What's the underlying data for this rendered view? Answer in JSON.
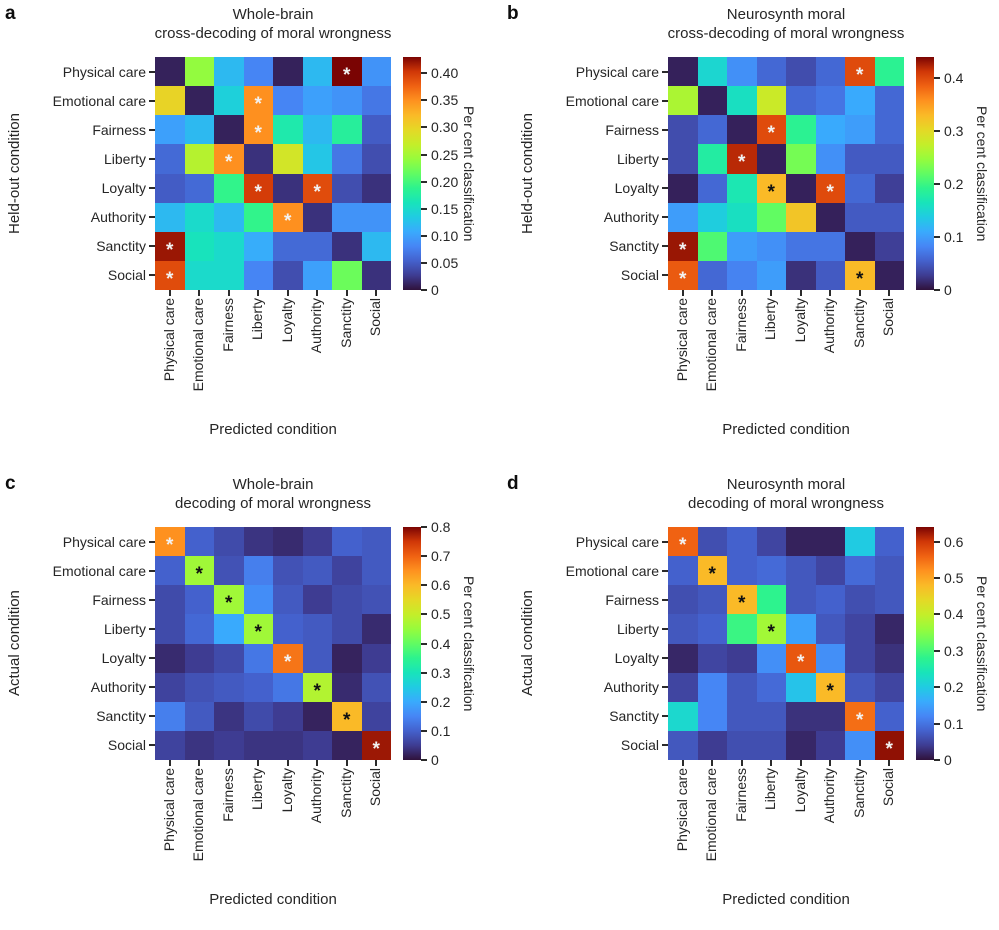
{
  "figure": {
    "background": "#ffffff",
    "text_color": "#262626",
    "colormap": "turbo",
    "categories": [
      "Physical care",
      "Emotional care",
      "Fairness",
      "Liberty",
      "Loyalty",
      "Authority",
      "Sanctity",
      "Social"
    ],
    "xlabel": "Predicted condition",
    "colorbar_label": "Per cent classification",
    "significance_marker": "*"
  },
  "chart_data": [
    {
      "type": "heatmap",
      "letter": "a",
      "title_line1": "Whole-brain",
      "title_line2": "cross-decoding of moral wrongness",
      "ylabel": "Held-out condition",
      "xlabel": "Predicted condition",
      "rows": [
        "Physical care",
        "Emotional care",
        "Fairness",
        "Liberty",
        "Loyalty",
        "Authority",
        "Sanctity",
        "Social"
      ],
      "cols": [
        "Physical care",
        "Emotional care",
        "Fairness",
        "Liberty",
        "Loyalty",
        "Authority",
        "Sanctity",
        "Social"
      ],
      "vmax": 0.43,
      "colorbar_ticks": [
        {
          "value": 0,
          "label": "0"
        },
        {
          "value": 0.05,
          "label": "0.05"
        },
        {
          "value": 0.1,
          "label": "0.10"
        },
        {
          "value": 0.15,
          "label": "0.15"
        },
        {
          "value": 0.2,
          "label": "0.20"
        },
        {
          "value": 0.25,
          "label": "0.25"
        },
        {
          "value": 0.3,
          "label": "0.30"
        },
        {
          "value": 0.35,
          "label": "0.35"
        },
        {
          "value": 0.4,
          "label": "0.40"
        }
      ],
      "values": [
        [
          0.01,
          0.24,
          0.12,
          0.08,
          0.01,
          0.12,
          0.43,
          0.09
        ],
        [
          0.3,
          0.01,
          0.14,
          0.35,
          0.08,
          0.1,
          0.09,
          0.07
        ],
        [
          0.1,
          0.12,
          0.01,
          0.35,
          0.17,
          0.12,
          0.18,
          0.05
        ],
        [
          0.06,
          0.26,
          0.35,
          0.02,
          0.28,
          0.13,
          0.07,
          0.04
        ],
        [
          0.05,
          0.06,
          0.19,
          0.4,
          0.02,
          0.39,
          0.04,
          0.02
        ],
        [
          0.12,
          0.15,
          0.12,
          0.19,
          0.35,
          0.02,
          0.09,
          0.09
        ],
        [
          0.42,
          0.16,
          0.15,
          0.11,
          0.06,
          0.06,
          0.02,
          0.12
        ],
        [
          0.39,
          0.15,
          0.15,
          0.08,
          0.04,
          0.1,
          0.22,
          0.02
        ]
      ],
      "significant": [
        {
          "row": 0,
          "col": 6,
          "star": "white"
        },
        {
          "row": 1,
          "col": 3,
          "star": "white"
        },
        {
          "row": 2,
          "col": 3,
          "star": "white"
        },
        {
          "row": 3,
          "col": 2,
          "star": "white"
        },
        {
          "row": 4,
          "col": 3,
          "star": "white"
        },
        {
          "row": 4,
          "col": 5,
          "star": "white"
        },
        {
          "row": 5,
          "col": 4,
          "star": "white"
        },
        {
          "row": 6,
          "col": 0,
          "star": "white"
        },
        {
          "row": 7,
          "col": 0,
          "star": "white"
        }
      ]
    },
    {
      "type": "heatmap",
      "letter": "b",
      "title_line1": "Neurosynth moral",
      "title_line2": "cross-decoding of moral wrongness",
      "ylabel": "Held-out condition",
      "xlabel": "Predicted condition",
      "rows": [
        "Physical care",
        "Emotional care",
        "Fairness",
        "Liberty",
        "Loyalty",
        "Authority",
        "Sanctity",
        "Social"
      ],
      "cols": [
        "Physical care",
        "Emotional care",
        "Fairness",
        "Liberty",
        "Loyalty",
        "Authority",
        "Sanctity",
        "Social"
      ],
      "vmax": 0.44,
      "colorbar_ticks": [
        {
          "value": 0,
          "label": "0"
        },
        {
          "value": 0.1,
          "label": "0.1"
        },
        {
          "value": 0.2,
          "label": "0.2"
        },
        {
          "value": 0.3,
          "label": "0.3"
        },
        {
          "value": 0.4,
          "label": "0.4"
        }
      ],
      "values": [
        [
          0.01,
          0.15,
          0.09,
          0.06,
          0.04,
          0.06,
          0.4,
          0.19
        ],
        [
          0.26,
          0.01,
          0.16,
          0.28,
          0.06,
          0.07,
          0.11,
          0.06
        ],
        [
          0.04,
          0.06,
          0.01,
          0.4,
          0.19,
          0.11,
          0.1,
          0.06
        ],
        [
          0.04,
          0.18,
          0.42,
          0.01,
          0.23,
          0.09,
          0.05,
          0.05
        ],
        [
          0.01,
          0.06,
          0.17,
          0.33,
          0.01,
          0.4,
          0.06,
          0.03
        ],
        [
          0.1,
          0.14,
          0.16,
          0.22,
          0.32,
          0.01,
          0.05,
          0.05
        ],
        [
          0.43,
          0.21,
          0.1,
          0.09,
          0.07,
          0.07,
          0.01,
          0.03
        ],
        [
          0.39,
          0.06,
          0.08,
          0.1,
          0.02,
          0.05,
          0.33,
          0.01
        ]
      ],
      "significant": [
        {
          "row": 0,
          "col": 6,
          "star": "white"
        },
        {
          "row": 2,
          "col": 3,
          "star": "white"
        },
        {
          "row": 3,
          "col": 2,
          "star": "white"
        },
        {
          "row": 4,
          "col": 3,
          "star": "black"
        },
        {
          "row": 4,
          "col": 5,
          "star": "white"
        },
        {
          "row": 6,
          "col": 0,
          "star": "white"
        },
        {
          "row": 7,
          "col": 0,
          "star": "white"
        },
        {
          "row": 7,
          "col": 6,
          "star": "black"
        }
      ]
    },
    {
      "type": "heatmap",
      "letter": "c",
      "title_line1": "Whole-brain",
      "title_line2": "decoding of moral wrongness",
      "ylabel": "Actual condition",
      "xlabel": "Predicted condition",
      "rows": [
        "Physical care",
        "Emotional care",
        "Fairness",
        "Liberty",
        "Loyalty",
        "Authority",
        "Sanctity",
        "Social"
      ],
      "cols": [
        "Physical care",
        "Emotional care",
        "Fairness",
        "Liberty",
        "Loyalty",
        "Authority",
        "Sanctity",
        "Social"
      ],
      "vmax": 0.8,
      "colorbar_ticks": [
        {
          "value": 0,
          "label": "0"
        },
        {
          "value": 0.1,
          "label": "0.1"
        },
        {
          "value": 0.2,
          "label": "0.2"
        },
        {
          "value": 0.3,
          "label": "0.3"
        },
        {
          "value": 0.4,
          "label": "0.4"
        },
        {
          "value": 0.5,
          "label": "0.5"
        },
        {
          "value": 0.6,
          "label": "0.6"
        },
        {
          "value": 0.7,
          "label": "0.7"
        },
        {
          "value": 0.8,
          "label": "0.8"
        }
      ],
      "values": [
        [
          0.65,
          0.1,
          0.07,
          0.04,
          0.03,
          0.05,
          0.1,
          0.09
        ],
        [
          0.1,
          0.46,
          0.08,
          0.14,
          0.08,
          0.09,
          0.06,
          0.09
        ],
        [
          0.07,
          0.1,
          0.46,
          0.16,
          0.09,
          0.05,
          0.07,
          0.08
        ],
        [
          0.07,
          0.11,
          0.2,
          0.46,
          0.1,
          0.09,
          0.07,
          0.03
        ],
        [
          0.03,
          0.05,
          0.07,
          0.13,
          0.68,
          0.09,
          0.02,
          0.05
        ],
        [
          0.06,
          0.08,
          0.09,
          0.1,
          0.13,
          0.48,
          0.03,
          0.08
        ],
        [
          0.14,
          0.09,
          0.04,
          0.07,
          0.05,
          0.02,
          0.6,
          0.06
        ],
        [
          0.06,
          0.04,
          0.05,
          0.04,
          0.04,
          0.05,
          0.02,
          0.78
        ]
      ],
      "significant": [
        {
          "row": 0,
          "col": 0,
          "star": "white"
        },
        {
          "row": 1,
          "col": 1,
          "star": "black"
        },
        {
          "row": 2,
          "col": 2,
          "star": "black"
        },
        {
          "row": 3,
          "col": 3,
          "star": "black"
        },
        {
          "row": 4,
          "col": 4,
          "star": "white"
        },
        {
          "row": 5,
          "col": 5,
          "star": "black"
        },
        {
          "row": 6,
          "col": 6,
          "star": "black"
        },
        {
          "row": 7,
          "col": 7,
          "star": "white"
        }
      ]
    },
    {
      "type": "heatmap",
      "letter": "d",
      "title_line1": "Neurosynth moral",
      "title_line2": "decoding of moral wrongness",
      "ylabel": "Actual condition",
      "xlabel": "Predicted condition",
      "rows": [
        "Physical care",
        "Emotional care",
        "Fairness",
        "Liberty",
        "Loyalty",
        "Authority",
        "Sanctity",
        "Social"
      ],
      "cols": [
        "Physical care",
        "Emotional care",
        "Fairness",
        "Liberty",
        "Loyalty",
        "Authority",
        "Sanctity",
        "Social"
      ],
      "vmax": 0.64,
      "colorbar_ticks": [
        {
          "value": 0,
          "label": "0"
        },
        {
          "value": 0.1,
          "label": "0.1"
        },
        {
          "value": 0.2,
          "label": "0.2"
        },
        {
          "value": 0.3,
          "label": "0.3"
        },
        {
          "value": 0.4,
          "label": "0.4"
        },
        {
          "value": 0.5,
          "label": "0.5"
        },
        {
          "value": 0.6,
          "label": "0.6"
        }
      ],
      "values": [
        [
          0.56,
          0.06,
          0.08,
          0.05,
          0.015,
          0.015,
          0.2,
          0.08
        ],
        [
          0.08,
          0.48,
          0.08,
          0.09,
          0.07,
          0.05,
          0.09,
          0.07
        ],
        [
          0.06,
          0.07,
          0.48,
          0.28,
          0.07,
          0.08,
          0.06,
          0.07
        ],
        [
          0.07,
          0.08,
          0.29,
          0.37,
          0.15,
          0.07,
          0.05,
          0.02
        ],
        [
          0.02,
          0.05,
          0.04,
          0.13,
          0.57,
          0.13,
          0.05,
          0.03
        ],
        [
          0.05,
          0.12,
          0.07,
          0.09,
          0.19,
          0.48,
          0.07,
          0.05
        ],
        [
          0.22,
          0.12,
          0.07,
          0.07,
          0.03,
          0.03,
          0.55,
          0.08
        ],
        [
          0.07,
          0.04,
          0.06,
          0.06,
          0.02,
          0.04,
          0.13,
          0.63
        ]
      ],
      "significant": [
        {
          "row": 0,
          "col": 0,
          "star": "white"
        },
        {
          "row": 1,
          "col": 1,
          "star": "black"
        },
        {
          "row": 2,
          "col": 2,
          "star": "black"
        },
        {
          "row": 3,
          "col": 3,
          "star": "black"
        },
        {
          "row": 4,
          "col": 4,
          "star": "white"
        },
        {
          "row": 5,
          "col": 5,
          "star": "black"
        },
        {
          "row": 6,
          "col": 6,
          "star": "white"
        },
        {
          "row": 7,
          "col": 7,
          "star": "white"
        }
      ]
    }
  ]
}
